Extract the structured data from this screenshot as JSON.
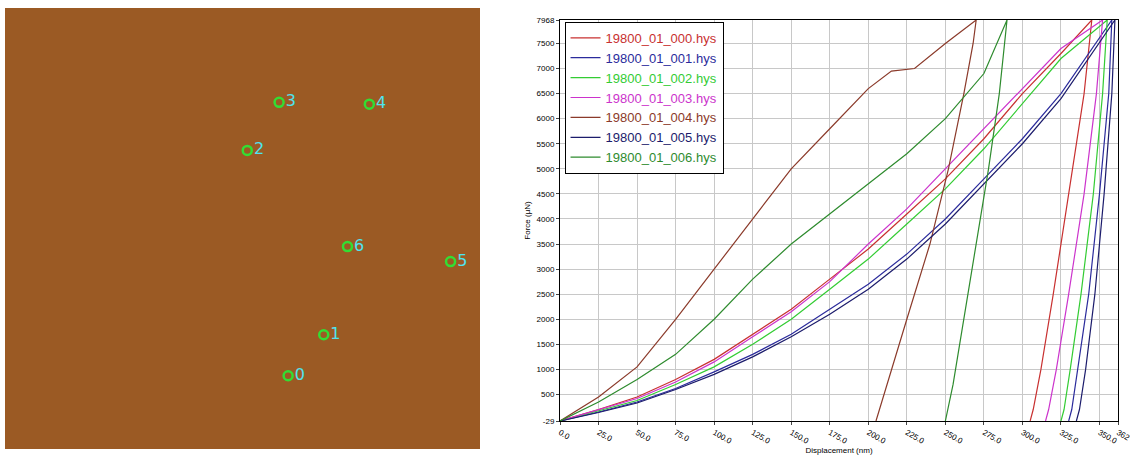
{
  "chart_data": [
    {
      "type": "scatter",
      "labels": [
        "0",
        "1",
        "2",
        "3",
        "4",
        "5",
        "6"
      ],
      "x": [
        0.596,
        0.671,
        0.51,
        0.577,
        0.767,
        0.938,
        0.721
      ],
      "y": [
        0.166,
        0.259,
        0.677,
        0.786,
        0.782,
        0.425,
        0.459
      ],
      "xlim": [
        0,
        1
      ],
      "ylim": [
        0,
        1
      ],
      "tick_labels": false,
      "color": "#33dd33",
      "marker": "circle-open"
    },
    {
      "type": "line",
      "x_label": "Displacement (nm)",
      "y_label": "Force (µN)",
      "xlim": [
        0,
        362
      ],
      "ylim": [
        -29,
        7968
      ],
      "xticks": [
        {
          "value": 0,
          "label": "0.0"
        },
        {
          "value": 25,
          "label": "25.0"
        },
        {
          "value": 50,
          "label": "50.0"
        },
        {
          "value": 75,
          "label": "75.0"
        },
        {
          "value": 100,
          "label": "100.0"
        },
        {
          "value": 125,
          "label": "125.0"
        },
        {
          "value": 150,
          "label": "150.0"
        },
        {
          "value": 175,
          "label": "175.0"
        },
        {
          "value": 200,
          "label": "200.0"
        },
        {
          "value": 225,
          "label": "225.0"
        },
        {
          "value": 250,
          "label": "250.0"
        },
        {
          "value": 275,
          "label": "275.0"
        },
        {
          "value": 300,
          "label": "300.0"
        },
        {
          "value": 325,
          "label": "325.0"
        },
        {
          "value": 350,
          "label": "350.0"
        },
        362
      ],
      "yticks": [
        -29,
        500,
        1000,
        1500,
        2000,
        2500,
        3000,
        3500,
        4000,
        4500,
        5000,
        5500,
        6000,
        6500,
        7000,
        7500,
        7968
      ],
      "grid": true,
      "legend": "top left",
      "series": [
        {
          "name": "19800_01_000.hys",
          "color": "#c83030",
          "x": [
            0,
            25,
            50,
            75,
            100,
            125,
            150,
            175,
            200,
            225,
            250,
            275,
            300,
            325,
            345,
            340,
            330,
            320,
            312,
            307,
            305
          ],
          "values": [
            -29,
            200,
            450,
            800,
            1200,
            1700,
            2200,
            2800,
            3400,
            4100,
            4800,
            5600,
            6500,
            7300,
            7968,
            6500,
            4500,
            2500,
            1000,
            200,
            -29
          ]
        },
        {
          "name": "19800_01_001.hys",
          "color": "#2b2b9c",
          "x": [
            0,
            25,
            50,
            75,
            100,
            125,
            150,
            175,
            200,
            225,
            250,
            275,
            300,
            325,
            358,
            356,
            350,
            343,
            336,
            332,
            330
          ],
          "values": [
            -29,
            150,
            350,
            620,
            950,
            1300,
            1700,
            2200,
            2700,
            3300,
            4000,
            4800,
            5600,
            6500,
            7968,
            6500,
            4500,
            2500,
            1000,
            200,
            -29
          ]
        },
        {
          "name": "19800_01_002.hys",
          "color": "#33cc33",
          "x": [
            0,
            25,
            50,
            75,
            100,
            125,
            150,
            175,
            200,
            225,
            250,
            275,
            300,
            325,
            355,
            352,
            346,
            338,
            331,
            327,
            325
          ],
          "values": [
            -29,
            180,
            380,
            700,
            1050,
            1500,
            2000,
            2600,
            3200,
            3900,
            4600,
            5400,
            6300,
            7200,
            7968,
            6500,
            4500,
            2500,
            1000,
            200,
            -29
          ]
        },
        {
          "name": "19800_01_003.hys",
          "color": "#cc33cc",
          "x": [
            0,
            25,
            50,
            75,
            100,
            125,
            150,
            175,
            200,
            225,
            250,
            275,
            300,
            325,
            352,
            348,
            340,
            330,
            322,
            317,
            315
          ],
          "values": [
            -29,
            200,
            420,
            750,
            1150,
            1650,
            2150,
            2750,
            3500,
            4200,
            5000,
            5800,
            6600,
            7400,
            7968,
            6500,
            4500,
            2500,
            1000,
            200,
            -29
          ]
        },
        {
          "name": "19800_01_004.hys",
          "color": "#8b3a2a",
          "x": [
            0,
            25,
            50,
            75,
            100,
            125,
            150,
            175,
            200,
            215,
            230,
            250,
            270,
            268,
            262,
            252,
            240,
            225,
            213,
            205
          ],
          "values": [
            -29,
            450,
            1050,
            2000,
            3000,
            4000,
            5000,
            5800,
            6600,
            6950,
            7000,
            7500,
            7968,
            7500,
            6500,
            5000,
            3500,
            2000,
            800,
            -29
          ]
        },
        {
          "name": "19800_01_005.hys",
          "color": "#1c1c6c",
          "x": [
            0,
            25,
            50,
            75,
            100,
            125,
            150,
            175,
            200,
            225,
            250,
            275,
            300,
            325,
            360,
            358,
            353,
            347,
            341,
            337,
            335
          ],
          "values": [
            -29,
            140,
            330,
            600,
            900,
            1250,
            1650,
            2100,
            2600,
            3200,
            3900,
            4700,
            5500,
            6400,
            7968,
            6500,
            4500,
            2500,
            1000,
            200,
            -29
          ]
        },
        {
          "name": "19800_01_006.hys",
          "color": "#2e8b2e",
          "x": [
            0,
            25,
            50,
            75,
            100,
            125,
            150,
            175,
            200,
            225,
            250,
            275,
            290,
            285,
            278,
            270,
            262,
            255,
            250
          ],
          "values": [
            -29,
            350,
            800,
            1300,
            2000,
            2800,
            3500,
            4100,
            4700,
            5300,
            6000,
            6900,
            7968,
            6500,
            5000,
            3500,
            2000,
            700,
            -29
          ]
        }
      ]
    }
  ]
}
